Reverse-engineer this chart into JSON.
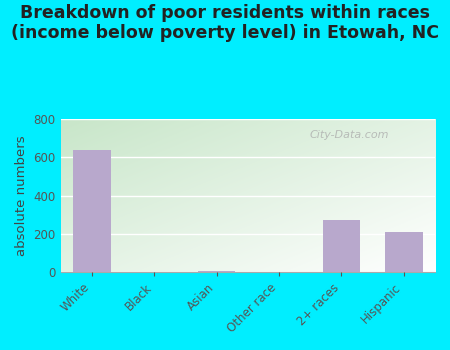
{
  "categories": [
    "White",
    "Black",
    "Asian",
    "Other race",
    "2+ races",
    "Hispanic"
  ],
  "values": [
    640,
    0,
    5,
    0,
    270,
    210
  ],
  "bar_color": "#b8a8cc",
  "title": "Breakdown of poor residents within races\n(income below poverty level) in Etowah, NC",
  "ylabel": "absolute numbers",
  "ylim": [
    0,
    800
  ],
  "yticks": [
    0,
    200,
    400,
    600,
    800
  ],
  "background_outer": "#00eeff",
  "plot_bg_topleft": "#c8e6c9",
  "plot_bg_bottomright": "#ffffff",
  "watermark": "City-Data.com",
  "title_fontsize": 12.5,
  "ylabel_fontsize": 9.5,
  "tick_fontsize": 8.5
}
